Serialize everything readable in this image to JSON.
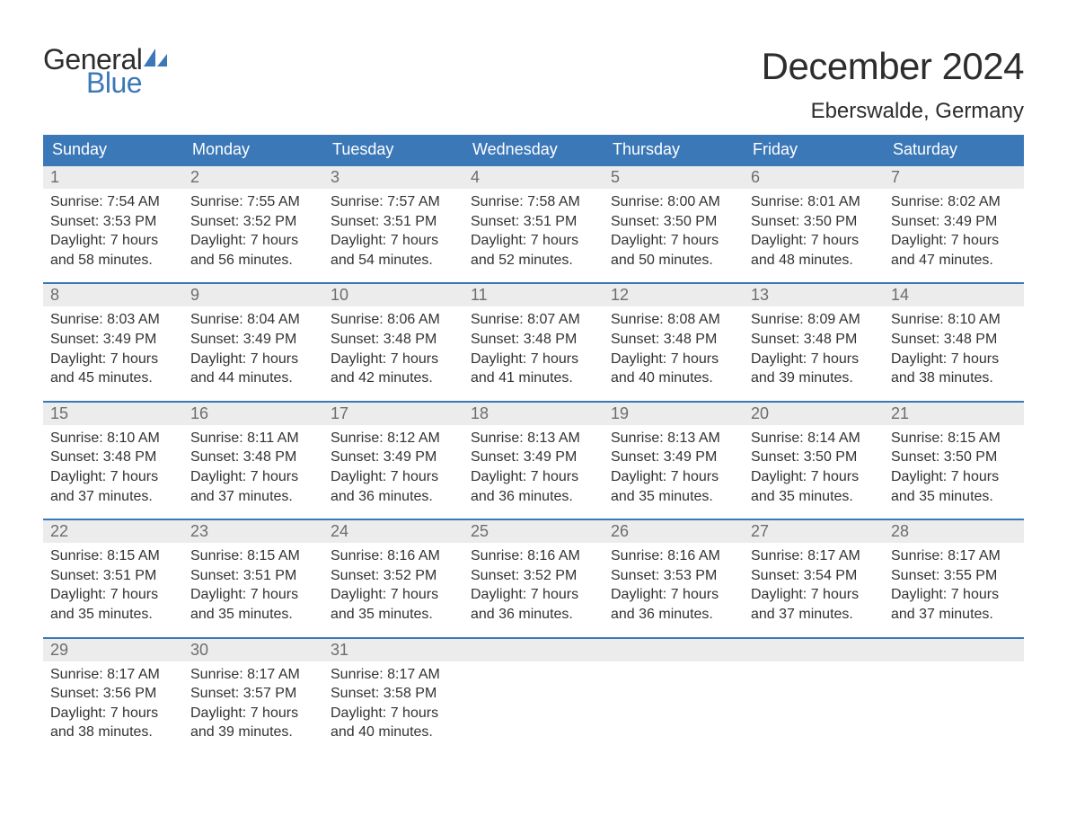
{
  "logo": {
    "text_top": "General",
    "text_bottom": "Blue"
  },
  "title": "December 2024",
  "location": "Eberswalde, Germany",
  "colors": {
    "header_bg": "#3b78b8",
    "header_text": "#ffffff",
    "daynum_bg": "#ececec",
    "daynum_text": "#6d6d6d",
    "body_text": "#333333",
    "week_border": "#3b78b8",
    "page_bg": "#ffffff",
    "logo_dark": "#2d2d2d",
    "logo_blue": "#3b78b8"
  },
  "typography": {
    "title_fontsize": 42,
    "location_fontsize": 24,
    "dayheader_fontsize": 18,
    "daynum_fontsize": 18,
    "body_fontsize": 16,
    "logo_fontsize": 32
  },
  "day_names": [
    "Sunday",
    "Monday",
    "Tuesday",
    "Wednesday",
    "Thursday",
    "Friday",
    "Saturday"
  ],
  "weeks": [
    [
      {
        "n": "1",
        "sunrise": "Sunrise: 7:54 AM",
        "sunset": "Sunset: 3:53 PM",
        "dl1": "Daylight: 7 hours",
        "dl2": "and 58 minutes."
      },
      {
        "n": "2",
        "sunrise": "Sunrise: 7:55 AM",
        "sunset": "Sunset: 3:52 PM",
        "dl1": "Daylight: 7 hours",
        "dl2": "and 56 minutes."
      },
      {
        "n": "3",
        "sunrise": "Sunrise: 7:57 AM",
        "sunset": "Sunset: 3:51 PM",
        "dl1": "Daylight: 7 hours",
        "dl2": "and 54 minutes."
      },
      {
        "n": "4",
        "sunrise": "Sunrise: 7:58 AM",
        "sunset": "Sunset: 3:51 PM",
        "dl1": "Daylight: 7 hours",
        "dl2": "and 52 minutes."
      },
      {
        "n": "5",
        "sunrise": "Sunrise: 8:00 AM",
        "sunset": "Sunset: 3:50 PM",
        "dl1": "Daylight: 7 hours",
        "dl2": "and 50 minutes."
      },
      {
        "n": "6",
        "sunrise": "Sunrise: 8:01 AM",
        "sunset": "Sunset: 3:50 PM",
        "dl1": "Daylight: 7 hours",
        "dl2": "and 48 minutes."
      },
      {
        "n": "7",
        "sunrise": "Sunrise: 8:02 AM",
        "sunset": "Sunset: 3:49 PM",
        "dl1": "Daylight: 7 hours",
        "dl2": "and 47 minutes."
      }
    ],
    [
      {
        "n": "8",
        "sunrise": "Sunrise: 8:03 AM",
        "sunset": "Sunset: 3:49 PM",
        "dl1": "Daylight: 7 hours",
        "dl2": "and 45 minutes."
      },
      {
        "n": "9",
        "sunrise": "Sunrise: 8:04 AM",
        "sunset": "Sunset: 3:49 PM",
        "dl1": "Daylight: 7 hours",
        "dl2": "and 44 minutes."
      },
      {
        "n": "10",
        "sunrise": "Sunrise: 8:06 AM",
        "sunset": "Sunset: 3:48 PM",
        "dl1": "Daylight: 7 hours",
        "dl2": "and 42 minutes."
      },
      {
        "n": "11",
        "sunrise": "Sunrise: 8:07 AM",
        "sunset": "Sunset: 3:48 PM",
        "dl1": "Daylight: 7 hours",
        "dl2": "and 41 minutes."
      },
      {
        "n": "12",
        "sunrise": "Sunrise: 8:08 AM",
        "sunset": "Sunset: 3:48 PM",
        "dl1": "Daylight: 7 hours",
        "dl2": "and 40 minutes."
      },
      {
        "n": "13",
        "sunrise": "Sunrise: 8:09 AM",
        "sunset": "Sunset: 3:48 PM",
        "dl1": "Daylight: 7 hours",
        "dl2": "and 39 minutes."
      },
      {
        "n": "14",
        "sunrise": "Sunrise: 8:10 AM",
        "sunset": "Sunset: 3:48 PM",
        "dl1": "Daylight: 7 hours",
        "dl2": "and 38 minutes."
      }
    ],
    [
      {
        "n": "15",
        "sunrise": "Sunrise: 8:10 AM",
        "sunset": "Sunset: 3:48 PM",
        "dl1": "Daylight: 7 hours",
        "dl2": "and 37 minutes."
      },
      {
        "n": "16",
        "sunrise": "Sunrise: 8:11 AM",
        "sunset": "Sunset: 3:48 PM",
        "dl1": "Daylight: 7 hours",
        "dl2": "and 37 minutes."
      },
      {
        "n": "17",
        "sunrise": "Sunrise: 8:12 AM",
        "sunset": "Sunset: 3:49 PM",
        "dl1": "Daylight: 7 hours",
        "dl2": "and 36 minutes."
      },
      {
        "n": "18",
        "sunrise": "Sunrise: 8:13 AM",
        "sunset": "Sunset: 3:49 PM",
        "dl1": "Daylight: 7 hours",
        "dl2": "and 36 minutes."
      },
      {
        "n": "19",
        "sunrise": "Sunrise: 8:13 AM",
        "sunset": "Sunset: 3:49 PM",
        "dl1": "Daylight: 7 hours",
        "dl2": "and 35 minutes."
      },
      {
        "n": "20",
        "sunrise": "Sunrise: 8:14 AM",
        "sunset": "Sunset: 3:50 PM",
        "dl1": "Daylight: 7 hours",
        "dl2": "and 35 minutes."
      },
      {
        "n": "21",
        "sunrise": "Sunrise: 8:15 AM",
        "sunset": "Sunset: 3:50 PM",
        "dl1": "Daylight: 7 hours",
        "dl2": "and 35 minutes."
      }
    ],
    [
      {
        "n": "22",
        "sunrise": "Sunrise: 8:15 AM",
        "sunset": "Sunset: 3:51 PM",
        "dl1": "Daylight: 7 hours",
        "dl2": "and 35 minutes."
      },
      {
        "n": "23",
        "sunrise": "Sunrise: 8:15 AM",
        "sunset": "Sunset: 3:51 PM",
        "dl1": "Daylight: 7 hours",
        "dl2": "and 35 minutes."
      },
      {
        "n": "24",
        "sunrise": "Sunrise: 8:16 AM",
        "sunset": "Sunset: 3:52 PM",
        "dl1": "Daylight: 7 hours",
        "dl2": "and 35 minutes."
      },
      {
        "n": "25",
        "sunrise": "Sunrise: 8:16 AM",
        "sunset": "Sunset: 3:52 PM",
        "dl1": "Daylight: 7 hours",
        "dl2": "and 36 minutes."
      },
      {
        "n": "26",
        "sunrise": "Sunrise: 8:16 AM",
        "sunset": "Sunset: 3:53 PM",
        "dl1": "Daylight: 7 hours",
        "dl2": "and 36 minutes."
      },
      {
        "n": "27",
        "sunrise": "Sunrise: 8:17 AM",
        "sunset": "Sunset: 3:54 PM",
        "dl1": "Daylight: 7 hours",
        "dl2": "and 37 minutes."
      },
      {
        "n": "28",
        "sunrise": "Sunrise: 8:17 AM",
        "sunset": "Sunset: 3:55 PM",
        "dl1": "Daylight: 7 hours",
        "dl2": "and 37 minutes."
      }
    ],
    [
      {
        "n": "29",
        "sunrise": "Sunrise: 8:17 AM",
        "sunset": "Sunset: 3:56 PM",
        "dl1": "Daylight: 7 hours",
        "dl2": "and 38 minutes."
      },
      {
        "n": "30",
        "sunrise": "Sunrise: 8:17 AM",
        "sunset": "Sunset: 3:57 PM",
        "dl1": "Daylight: 7 hours",
        "dl2": "and 39 minutes."
      },
      {
        "n": "31",
        "sunrise": "Sunrise: 8:17 AM",
        "sunset": "Sunset: 3:58 PM",
        "dl1": "Daylight: 7 hours",
        "dl2": "and 40 minutes."
      },
      {
        "empty": true
      },
      {
        "empty": true
      },
      {
        "empty": true
      },
      {
        "empty": true
      }
    ]
  ]
}
